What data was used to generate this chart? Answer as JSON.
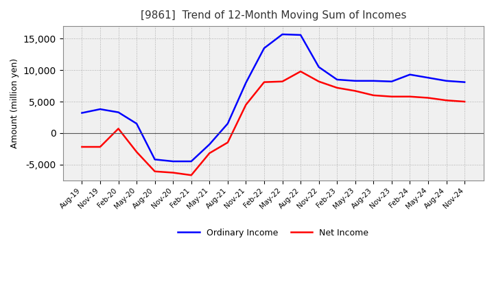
{
  "title": "[9861]  Trend of 12-Month Moving Sum of Incomes",
  "ylabel": "Amount (million yen)",
  "ylim": [
    -7500,
    17000
  ],
  "yticks": [
    -5000,
    0,
    5000,
    10000,
    15000
  ],
  "line_colors": [
    "#0000ff",
    "#ff0000"
  ],
  "legend_labels": [
    "Ordinary Income",
    "Net Income"
  ],
  "x_labels": [
    "Aug-19",
    "Nov-19",
    "Feb-20",
    "May-20",
    "Aug-20",
    "Nov-20",
    "Feb-21",
    "May-21",
    "Aug-21",
    "Nov-21",
    "Feb-22",
    "May-22",
    "Aug-22",
    "Nov-22",
    "Feb-23",
    "May-23",
    "Aug-23",
    "Nov-23",
    "Feb-24",
    "May-24",
    "Aug-24",
    "Nov-24"
  ],
  "ordinary_income": [
    3200,
    3800,
    3300,
    1500,
    -4200,
    -4500,
    -4500,
    -1800,
    1500,
    8000,
    13500,
    15700,
    15600,
    10500,
    8500,
    8300,
    8300,
    8200,
    9300,
    8800,
    8300,
    8100
  ],
  "net_income": [
    -2200,
    -2200,
    700,
    -3000,
    -6100,
    -6300,
    -6700,
    -3200,
    -1500,
    4500,
    8100,
    8200,
    9800,
    8200,
    7200,
    6700,
    6000,
    5800,
    5800,
    5600,
    5200,
    5000
  ],
  "background_color": "#ffffff",
  "plot_bg_color": "#f0f0f0",
  "grid_color": "#aaaaaa",
  "zero_line_color": "#555555"
}
